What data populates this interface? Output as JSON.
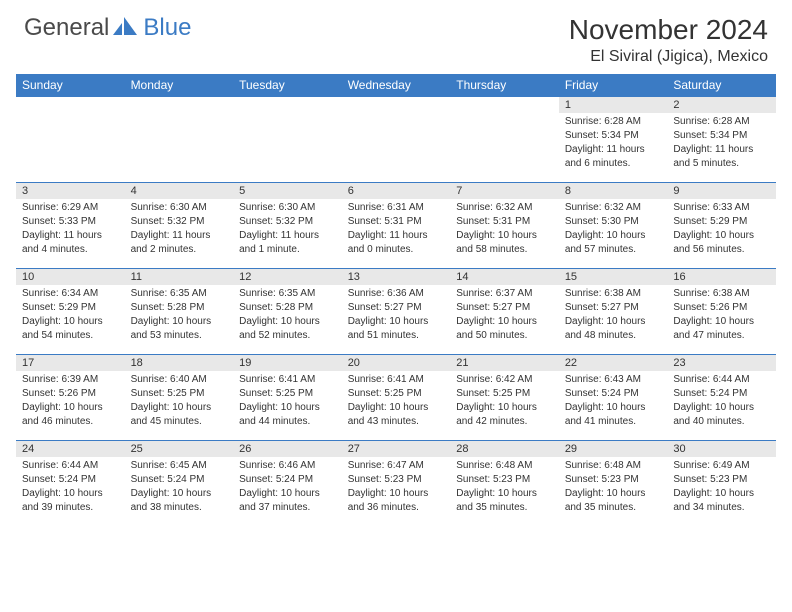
{
  "brand": {
    "general": "General",
    "blue": "Blue"
  },
  "title": "November 2024",
  "location": "El Siviral (Jigica), Mexico",
  "header_bg": "#3b7bc4",
  "weekdays": [
    "Sunday",
    "Monday",
    "Tuesday",
    "Wednesday",
    "Thursday",
    "Friday",
    "Saturday"
  ],
  "weeks": [
    [
      null,
      null,
      null,
      null,
      null,
      {
        "n": "1",
        "sr": "Sunrise: 6:28 AM",
        "ss": "Sunset: 5:34 PM",
        "dl": "Daylight: 11 hours and 6 minutes."
      },
      {
        "n": "2",
        "sr": "Sunrise: 6:28 AM",
        "ss": "Sunset: 5:34 PM",
        "dl": "Daylight: 11 hours and 5 minutes."
      }
    ],
    [
      {
        "n": "3",
        "sr": "Sunrise: 6:29 AM",
        "ss": "Sunset: 5:33 PM",
        "dl": "Daylight: 11 hours and 4 minutes."
      },
      {
        "n": "4",
        "sr": "Sunrise: 6:30 AM",
        "ss": "Sunset: 5:32 PM",
        "dl": "Daylight: 11 hours and 2 minutes."
      },
      {
        "n": "5",
        "sr": "Sunrise: 6:30 AM",
        "ss": "Sunset: 5:32 PM",
        "dl": "Daylight: 11 hours and 1 minute."
      },
      {
        "n": "6",
        "sr": "Sunrise: 6:31 AM",
        "ss": "Sunset: 5:31 PM",
        "dl": "Daylight: 11 hours and 0 minutes."
      },
      {
        "n": "7",
        "sr": "Sunrise: 6:32 AM",
        "ss": "Sunset: 5:31 PM",
        "dl": "Daylight: 10 hours and 58 minutes."
      },
      {
        "n": "8",
        "sr": "Sunrise: 6:32 AM",
        "ss": "Sunset: 5:30 PM",
        "dl": "Daylight: 10 hours and 57 minutes."
      },
      {
        "n": "9",
        "sr": "Sunrise: 6:33 AM",
        "ss": "Sunset: 5:29 PM",
        "dl": "Daylight: 10 hours and 56 minutes."
      }
    ],
    [
      {
        "n": "10",
        "sr": "Sunrise: 6:34 AM",
        "ss": "Sunset: 5:29 PM",
        "dl": "Daylight: 10 hours and 54 minutes."
      },
      {
        "n": "11",
        "sr": "Sunrise: 6:35 AM",
        "ss": "Sunset: 5:28 PM",
        "dl": "Daylight: 10 hours and 53 minutes."
      },
      {
        "n": "12",
        "sr": "Sunrise: 6:35 AM",
        "ss": "Sunset: 5:28 PM",
        "dl": "Daylight: 10 hours and 52 minutes."
      },
      {
        "n": "13",
        "sr": "Sunrise: 6:36 AM",
        "ss": "Sunset: 5:27 PM",
        "dl": "Daylight: 10 hours and 51 minutes."
      },
      {
        "n": "14",
        "sr": "Sunrise: 6:37 AM",
        "ss": "Sunset: 5:27 PM",
        "dl": "Daylight: 10 hours and 50 minutes."
      },
      {
        "n": "15",
        "sr": "Sunrise: 6:38 AM",
        "ss": "Sunset: 5:27 PM",
        "dl": "Daylight: 10 hours and 48 minutes."
      },
      {
        "n": "16",
        "sr": "Sunrise: 6:38 AM",
        "ss": "Sunset: 5:26 PM",
        "dl": "Daylight: 10 hours and 47 minutes."
      }
    ],
    [
      {
        "n": "17",
        "sr": "Sunrise: 6:39 AM",
        "ss": "Sunset: 5:26 PM",
        "dl": "Daylight: 10 hours and 46 minutes."
      },
      {
        "n": "18",
        "sr": "Sunrise: 6:40 AM",
        "ss": "Sunset: 5:25 PM",
        "dl": "Daylight: 10 hours and 45 minutes."
      },
      {
        "n": "19",
        "sr": "Sunrise: 6:41 AM",
        "ss": "Sunset: 5:25 PM",
        "dl": "Daylight: 10 hours and 44 minutes."
      },
      {
        "n": "20",
        "sr": "Sunrise: 6:41 AM",
        "ss": "Sunset: 5:25 PM",
        "dl": "Daylight: 10 hours and 43 minutes."
      },
      {
        "n": "21",
        "sr": "Sunrise: 6:42 AM",
        "ss": "Sunset: 5:25 PM",
        "dl": "Daylight: 10 hours and 42 minutes."
      },
      {
        "n": "22",
        "sr": "Sunrise: 6:43 AM",
        "ss": "Sunset: 5:24 PM",
        "dl": "Daylight: 10 hours and 41 minutes."
      },
      {
        "n": "23",
        "sr": "Sunrise: 6:44 AM",
        "ss": "Sunset: 5:24 PM",
        "dl": "Daylight: 10 hours and 40 minutes."
      }
    ],
    [
      {
        "n": "24",
        "sr": "Sunrise: 6:44 AM",
        "ss": "Sunset: 5:24 PM",
        "dl": "Daylight: 10 hours and 39 minutes."
      },
      {
        "n": "25",
        "sr": "Sunrise: 6:45 AM",
        "ss": "Sunset: 5:24 PM",
        "dl": "Daylight: 10 hours and 38 minutes."
      },
      {
        "n": "26",
        "sr": "Sunrise: 6:46 AM",
        "ss": "Sunset: 5:24 PM",
        "dl": "Daylight: 10 hours and 37 minutes."
      },
      {
        "n": "27",
        "sr": "Sunrise: 6:47 AM",
        "ss": "Sunset: 5:23 PM",
        "dl": "Daylight: 10 hours and 36 minutes."
      },
      {
        "n": "28",
        "sr": "Sunrise: 6:48 AM",
        "ss": "Sunset: 5:23 PM",
        "dl": "Daylight: 10 hours and 35 minutes."
      },
      {
        "n": "29",
        "sr": "Sunrise: 6:48 AM",
        "ss": "Sunset: 5:23 PM",
        "dl": "Daylight: 10 hours and 35 minutes."
      },
      {
        "n": "30",
        "sr": "Sunrise: 6:49 AM",
        "ss": "Sunset: 5:23 PM",
        "dl": "Daylight: 10 hours and 34 minutes."
      }
    ]
  ]
}
